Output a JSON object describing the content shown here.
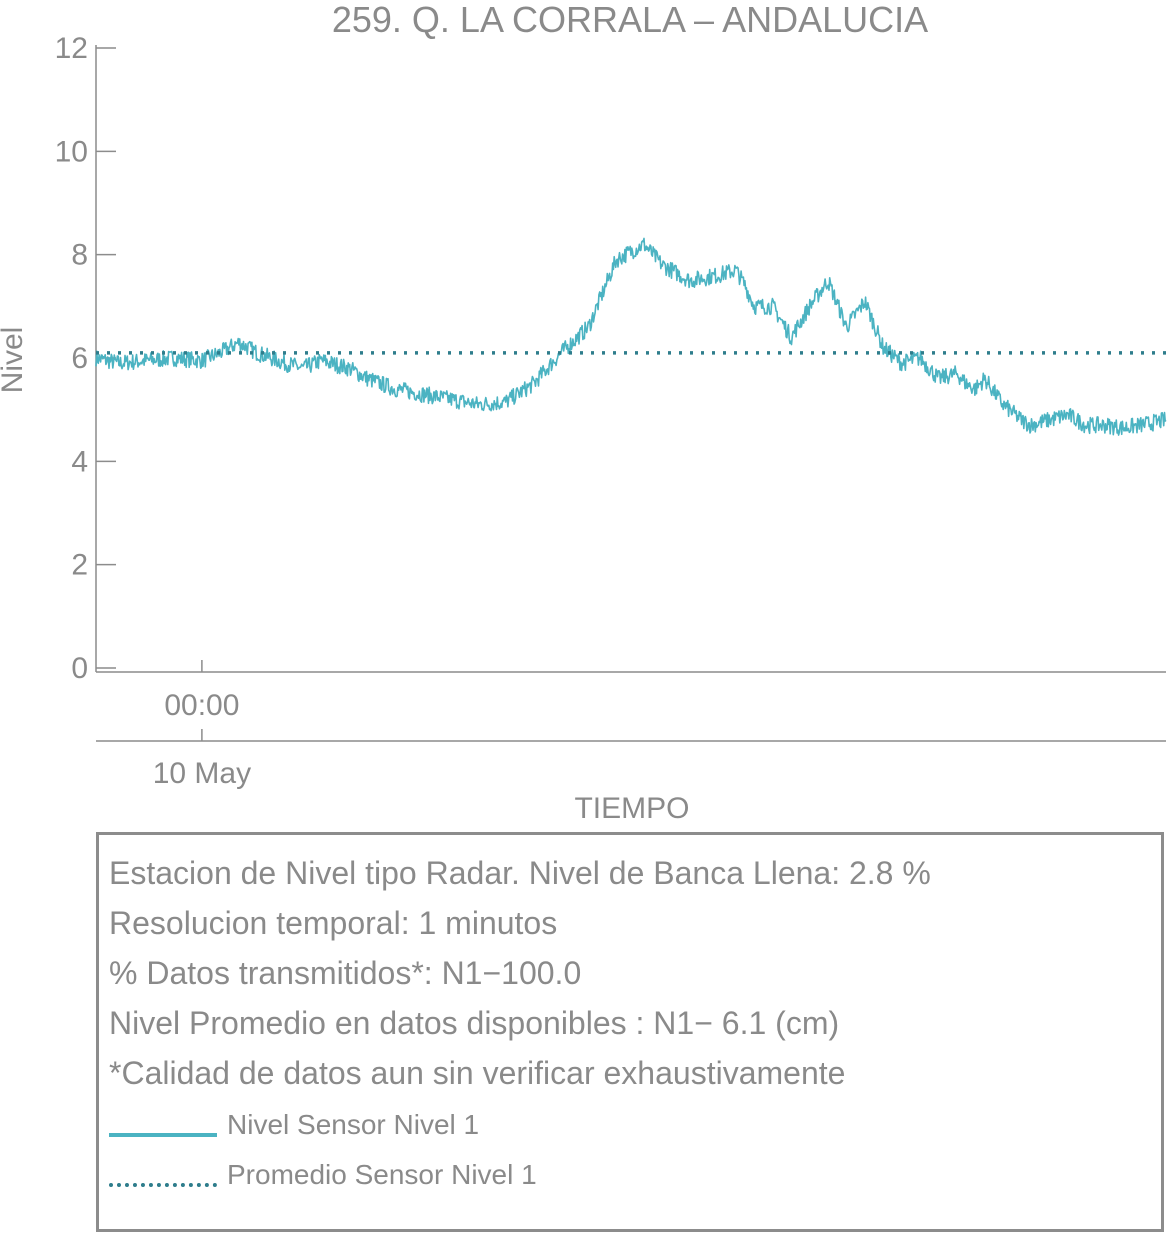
{
  "chart_data": {
    "type": "line",
    "title": "259. Q. LA CORRALA – ANDALUCIA",
    "xlabel": "TIEMPO",
    "ylabel": "Nivel",
    "ylim": [
      0,
      12
    ],
    "yticks": [
      0,
      2,
      4,
      6,
      8,
      10,
      12
    ],
    "xlim": [
      -0.115,
      1.047
    ],
    "x_unit": "days since 10 May 00:00",
    "xtick_label_time": "00:00",
    "xtick_label_date": "10 May",
    "grid": false,
    "series": [
      {
        "name": "Nivel Sensor Nivel 1",
        "color": "#4bb3c2",
        "style": "solid",
        "x": [
          -0.115,
          -0.09,
          -0.06,
          -0.03,
          0.0,
          0.02,
          0.04,
          0.06,
          0.09,
          0.11,
          0.13,
          0.16,
          0.18,
          0.21,
          0.24,
          0.27,
          0.3,
          0.33,
          0.36,
          0.39,
          0.42,
          0.45,
          0.48,
          0.5,
          0.53,
          0.56,
          0.58,
          0.59,
          0.6,
          0.62,
          0.64,
          0.66,
          0.68,
          0.7,
          0.72,
          0.74,
          0.76,
          0.78,
          0.8,
          0.82,
          0.83,
          0.84,
          0.85,
          0.87,
          0.89,
          0.9,
          0.92,
          0.94,
          0.96,
          0.98,
          1.0,
          1.02,
          1.047
        ],
        "y": [
          6.0,
          5.9,
          5.95,
          6.0,
          5.95,
          6.1,
          6.3,
          6.1,
          5.9,
          5.8,
          5.95,
          5.8,
          5.6,
          5.4,
          5.3,
          5.2,
          5.1,
          5.15,
          5.5,
          6.1,
          6.6,
          7.9,
          8.2,
          7.8,
          7.5,
          7.6,
          7.7,
          7.4,
          7.0,
          7.0,
          6.4,
          7.0,
          7.5,
          6.6,
          7.1,
          6.2,
          5.9,
          6.0,
          5.6,
          5.7,
          5.5,
          5.4,
          5.6,
          5.1,
          4.8,
          4.7,
          4.8,
          4.9,
          4.7,
          4.7,
          4.65,
          4.7,
          4.8
        ]
      },
      {
        "name": "Promedio Sensor Nivel 1",
        "color": "#2e7d8c",
        "style": "dotted",
        "x": [
          -0.115,
          1.047
        ],
        "y": [
          6.1,
          6.1
        ]
      }
    ]
  },
  "info": {
    "line1": "Estacion de Nivel tipo Radar. Nivel de Banca Llena:  2.8 %",
    "line2": "Resolucion temporal: 1 minutos",
    "line3": "% Datos transmitidos*: N1−100.0",
    "line4": "Nivel Promedio en datos disponibles : N1−  6.1 (cm)",
    "line5": "*Calidad de datos aun sin verificar exhaustivamente"
  },
  "legend": {
    "item1": "Nivel Sensor Nivel 1",
    "item2": "Promedio Sensor Nivel 1"
  }
}
